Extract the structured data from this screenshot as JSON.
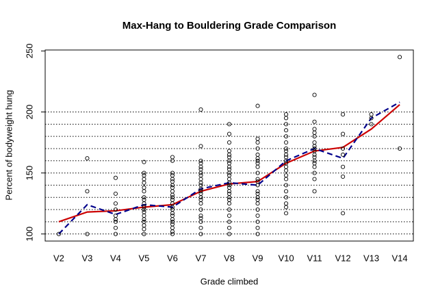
{
  "chart_data": {
    "type": "scatter",
    "title": "Max-Hang to Bouldering Grade Comparison",
    "x_label": "Grade climbed",
    "y_label": "Percent of bodyweight hung",
    "categories": [
      "V2",
      "V3",
      "V4",
      "V5",
      "V6",
      "V7",
      "V8",
      "V9",
      "V10",
      "V11",
      "V12",
      "V13",
      "V14"
    ],
    "ylim": [
      94.2,
      250.8
    ],
    "yticks": [
      100,
      150,
      200,
      250
    ],
    "hlines": [
      100,
      110,
      120,
      130,
      140,
      150,
      160,
      170,
      180,
      190,
      200
    ],
    "points": {
      "x": [
        "V2",
        "V3",
        "V3",
        "V3",
        "V4",
        "V4",
        "V4",
        "V4",
        "V4",
        "V4",
        "V4",
        "V4",
        "V4",
        "V5",
        "V5",
        "V5",
        "V5",
        "V5",
        "V5",
        "V5",
        "V5",
        "V5",
        "V5",
        "V5",
        "V5",
        "V5",
        "V5",
        "V5",
        "V5",
        "V5",
        "V5",
        "V5",
        "V6",
        "V6",
        "V6",
        "V6",
        "V6",
        "V6",
        "V6",
        "V6",
        "V6",
        "V6",
        "V6",
        "V6",
        "V6",
        "V6",
        "V6",
        "V6",
        "V6",
        "V6",
        "V6",
        "V6",
        "V6",
        "V6",
        "V6",
        "V7",
        "V7",
        "V7",
        "V7",
        "V7",
        "V7",
        "V7",
        "V7",
        "V7",
        "V7",
        "V7",
        "V7",
        "V7",
        "V7",
        "V7",
        "V7",
        "V7",
        "V7",
        "V7",
        "V7",
        "V7",
        "V7",
        "V7",
        "V8",
        "V8",
        "V8",
        "V8",
        "V8",
        "V8",
        "V8",
        "V8",
        "V8",
        "V8",
        "V8",
        "V8",
        "V8",
        "V8",
        "V8",
        "V8",
        "V8",
        "V8",
        "V8",
        "V8",
        "V8",
        "V8",
        "V8",
        "V8",
        "V8",
        "V8",
        "V9",
        "V9",
        "V9",
        "V9",
        "V9",
        "V9",
        "V9",
        "V9",
        "V9",
        "V9",
        "V9",
        "V9",
        "V9",
        "V9",
        "V9",
        "V9",
        "V9",
        "V9",
        "V9",
        "V9",
        "V9",
        "V9",
        "V9",
        "V10",
        "V10",
        "V10",
        "V10",
        "V10",
        "V10",
        "V10",
        "V10",
        "V10",
        "V10",
        "V10",
        "V10",
        "V10",
        "V10",
        "V10",
        "V10",
        "V10",
        "V10",
        "V10",
        "V10",
        "V10",
        "V10",
        "V11",
        "V11",
        "V11",
        "V11",
        "V11",
        "V11",
        "V11",
        "V11",
        "V11",
        "V11",
        "V11",
        "V11",
        "V11",
        "V11",
        "V11",
        "V11",
        "V11",
        "V12",
        "V12",
        "V12",
        "V12",
        "V12",
        "V12",
        "V12",
        "V13",
        "V13",
        "V13",
        "V14",
        "V14"
      ],
      "y": [
        100,
        100,
        135,
        162,
        100,
        105,
        110,
        112,
        115,
        120,
        125,
        133,
        146,
        100,
        104,
        107,
        110,
        112,
        115,
        118,
        120,
        122,
        125,
        128,
        130,
        135,
        138,
        142,
        145,
        148,
        150,
        159,
        100,
        102,
        105,
        108,
        110,
        112,
        115,
        117,
        120,
        122,
        125,
        128,
        130,
        132,
        135,
        138,
        140,
        143,
        145,
        148,
        150,
        160,
        163,
        100,
        105,
        110,
        113,
        115,
        120,
        125,
        128,
        130,
        133,
        135,
        137,
        140,
        142,
        145,
        148,
        150,
        153,
        155,
        158,
        160,
        172,
        202,
        100,
        105,
        110,
        115,
        120,
        125,
        128,
        130,
        133,
        135,
        138,
        140,
        142,
        145,
        148,
        150,
        153,
        155,
        158,
        160,
        163,
        165,
        168,
        175,
        182,
        190,
        100,
        105,
        110,
        115,
        120,
        125,
        128,
        130,
        133,
        135,
        140,
        143,
        145,
        150,
        155,
        158,
        160,
        162,
        165,
        170,
        175,
        178,
        205,
        117,
        122,
        125,
        130,
        135,
        140,
        145,
        148,
        152,
        155,
        158,
        160,
        163,
        165,
        168,
        170,
        175,
        180,
        185,
        190,
        195,
        198,
        135,
        145,
        150,
        155,
        158,
        160,
        163,
        165,
        168,
        170,
        172,
        175,
        180,
        183,
        186,
        192,
        214,
        117,
        147,
        155,
        165,
        170,
        182,
        198,
        190,
        195,
        198,
        170,
        245
      ]
    },
    "lines": [
      {
        "color": "#cc0000",
        "dashed": false,
        "values": [
          110,
          118,
          119,
          122,
          124,
          135,
          141,
          143,
          158,
          168,
          171,
          186,
          206
        ]
      },
      {
        "color": "#00008b",
        "dashed": true,
        "values": [
          100,
          124,
          116,
          124,
          122,
          137,
          142,
          140,
          160,
          170,
          162,
          195,
          208
        ]
      }
    ]
  }
}
